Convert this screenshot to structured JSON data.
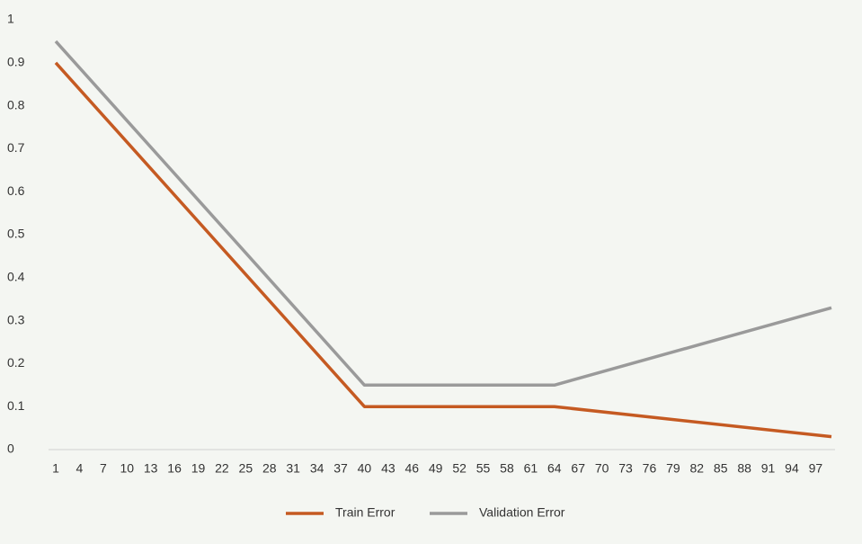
{
  "chart_data": {
    "type": "line",
    "x": [
      1,
      40,
      64,
      99
    ],
    "xlim": [
      1,
      99
    ],
    "xticks": [
      1,
      4,
      7,
      10,
      13,
      16,
      19,
      22,
      25,
      28,
      31,
      34,
      37,
      40,
      43,
      46,
      49,
      52,
      55,
      58,
      61,
      64,
      67,
      70,
      73,
      76,
      79,
      82,
      85,
      88,
      91,
      94,
      97
    ],
    "ylim": [
      0,
      1
    ],
    "yticks": [
      0,
      0.1,
      0.2,
      0.3,
      0.4,
      0.5,
      0.6,
      0.7,
      0.8,
      0.9,
      1
    ],
    "grid": false,
    "legend": "bottom",
    "series": [
      {
        "name": "Train Error",
        "color": "#c55a22",
        "values": [
          0.9,
          0.1,
          0.1,
          0.03
        ]
      },
      {
        "name": "Validation Error",
        "color": "#9a9a9a",
        "values": [
          0.95,
          0.15,
          0.15,
          0.33
        ]
      }
    ]
  }
}
